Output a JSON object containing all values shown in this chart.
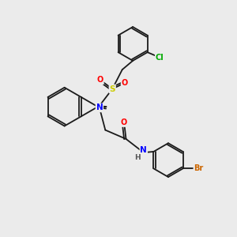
{
  "background_color": "#ebebeb",
  "bond_color": "#1a1a1a",
  "atom_colors": {
    "N": "#0000ff",
    "O": "#ff0000",
    "S": "#cccc00",
    "Cl": "#00aa00",
    "Br": "#cc6600",
    "H": "#555555"
  }
}
